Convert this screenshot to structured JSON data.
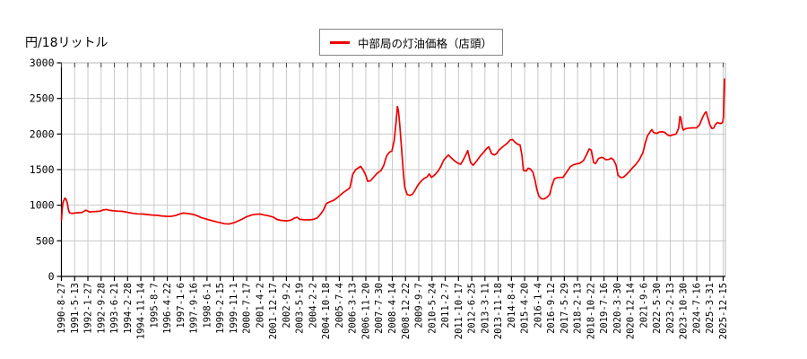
{
  "chart_data": {
    "type": "line",
    "y_axis_title": "円/18リットル",
    "legend": {
      "label": "中部局の灯油価格（店頭）",
      "position": "top-center"
    },
    "ylim": [
      0,
      3000
    ],
    "y_ticks": [
      0,
      500,
      1000,
      1500,
      2000,
      2500,
      3000
    ],
    "grid": true,
    "colors": {
      "line": "#ee0000",
      "grid": "#c9c9c9",
      "axis": "#000000",
      "frame_light": "#b5b5b5",
      "legend_border": "#848484"
    },
    "x_tick_labels": [
      "1990-8-27",
      "1991-5-13",
      "1992-1-27",
      "1992-9-28",
      "1993-6-21",
      "1994-2-28",
      "1994-11-14",
      "1995-8-7",
      "1996-4-22",
      "1997-1-6",
      "1997-9-16",
      "1998-6-1",
      "1999-2-15",
      "1999-11-1",
      "2000-7-17",
      "2001-4-2",
      "2001-12-17",
      "2002-9-2",
      "2003-5-19",
      "2004-2-2",
      "2004-10-18",
      "2005-7-4",
      "2006-3-13",
      "2006-11-20",
      "2007-7-30",
      "2008-4-14",
      "2008-12-22",
      "2009-9-7",
      "2010-5-24",
      "2011-2-7",
      "2011-10-17",
      "2012-6-25",
      "2013-3-11",
      "2013-11-18",
      "2014-8-4",
      "2015-4-20",
      "2016-1-4",
      "2016-9-12",
      "2017-5-29",
      "2018-2-13",
      "2018-10-22",
      "2019-7-16",
      "2020-3-30",
      "2020-12-14",
      "2021-9-6",
      "2022-5-30",
      "2023-2-13",
      "2023-10-30",
      "2024-7-16",
      "2025-3-31",
      "2025-12-15"
    ],
    "x_axis_time_range_years": [
      1990.655,
      2025.956
    ],
    "series": [
      {
        "name": "中部局の灯油価格（店頭）",
        "color": "#ee0000",
        "points_format": [
          "year_decimal",
          "yen_per_18L"
        ],
        "points": [
          [
            1990.66,
            795
          ],
          [
            1990.7,
            950
          ],
          [
            1990.74,
            1040
          ],
          [
            1990.8,
            1075
          ],
          [
            1990.84,
            1100
          ],
          [
            1990.9,
            1085
          ],
          [
            1990.97,
            1030
          ],
          [
            1991.02,
            950
          ],
          [
            1991.08,
            895
          ],
          [
            1991.2,
            885
          ],
          [
            1991.36,
            890
          ],
          [
            1991.55,
            895
          ],
          [
            1991.75,
            898
          ],
          [
            1991.95,
            930
          ],
          [
            1992.05,
            920
          ],
          [
            1992.15,
            905
          ],
          [
            1992.3,
            910
          ],
          [
            1992.5,
            913
          ],
          [
            1992.7,
            916
          ],
          [
            1992.9,
            935
          ],
          [
            1993.05,
            940
          ],
          [
            1993.25,
            928
          ],
          [
            1993.45,
            922
          ],
          [
            1993.65,
            918
          ],
          [
            1993.85,
            915
          ],
          [
            1994.05,
            908
          ],
          [
            1994.25,
            896
          ],
          [
            1994.5,
            885
          ],
          [
            1994.75,
            878
          ],
          [
            1995.0,
            876
          ],
          [
            1995.25,
            868
          ],
          [
            1995.5,
            862
          ],
          [
            1995.75,
            858
          ],
          [
            1996.0,
            850
          ],
          [
            1996.25,
            845
          ],
          [
            1996.5,
            843
          ],
          [
            1996.75,
            856
          ],
          [
            1997.0,
            880
          ],
          [
            1997.15,
            890
          ],
          [
            1997.35,
            885
          ],
          [
            1997.55,
            877
          ],
          [
            1997.71,
            870
          ],
          [
            1997.9,
            852
          ],
          [
            1998.1,
            828
          ],
          [
            1998.42,
            803
          ],
          [
            1998.7,
            783
          ],
          [
            1998.95,
            765
          ],
          [
            1999.12,
            755
          ],
          [
            1999.35,
            740
          ],
          [
            1999.6,
            736
          ],
          [
            1999.84,
            753
          ],
          [
            2000.05,
            775
          ],
          [
            2000.3,
            805
          ],
          [
            2000.54,
            840
          ],
          [
            2000.8,
            862
          ],
          [
            2001.0,
            872
          ],
          [
            2001.25,
            876
          ],
          [
            2001.45,
            865
          ],
          [
            2001.7,
            852
          ],
          [
            2001.96,
            833
          ],
          [
            2002.15,
            800
          ],
          [
            2002.35,
            788
          ],
          [
            2002.67,
            780
          ],
          [
            2002.9,
            790
          ],
          [
            2003.1,
            820
          ],
          [
            2003.22,
            832
          ],
          [
            2003.38,
            802
          ],
          [
            2003.6,
            796
          ],
          [
            2003.85,
            794
          ],
          [
            2004.08,
            800
          ],
          [
            2004.3,
            822
          ],
          [
            2004.5,
            880
          ],
          [
            2004.65,
            940
          ],
          [
            2004.79,
            1025
          ],
          [
            2004.95,
            1045
          ],
          [
            2005.15,
            1065
          ],
          [
            2005.35,
            1100
          ],
          [
            2005.5,
            1135
          ],
          [
            2005.7,
            1180
          ],
          [
            2005.9,
            1215
          ],
          [
            2006.05,
            1245
          ],
          [
            2006.19,
            1430
          ],
          [
            2006.35,
            1500
          ],
          [
            2006.5,
            1525
          ],
          [
            2006.62,
            1545
          ],
          [
            2006.75,
            1495
          ],
          [
            2006.89,
            1420
          ],
          [
            2007.0,
            1335
          ],
          [
            2007.15,
            1345
          ],
          [
            2007.3,
            1390
          ],
          [
            2007.45,
            1435
          ],
          [
            2007.57,
            1465
          ],
          [
            2007.7,
            1485
          ],
          [
            2007.85,
            1560
          ],
          [
            2008.0,
            1690
          ],
          [
            2008.15,
            1745
          ],
          [
            2008.28,
            1760
          ],
          [
            2008.4,
            1900
          ],
          [
            2008.5,
            2150
          ],
          [
            2008.58,
            2388
          ],
          [
            2008.63,
            2330
          ],
          [
            2008.7,
            2150
          ],
          [
            2008.8,
            1800
          ],
          [
            2008.9,
            1450
          ],
          [
            2008.97,
            1255
          ],
          [
            2009.1,
            1150
          ],
          [
            2009.25,
            1138
          ],
          [
            2009.4,
            1160
          ],
          [
            2009.55,
            1225
          ],
          [
            2009.68,
            1285
          ],
          [
            2009.85,
            1340
          ],
          [
            2010.0,
            1375
          ],
          [
            2010.15,
            1395
          ],
          [
            2010.28,
            1440
          ],
          [
            2010.39,
            1390
          ],
          [
            2010.55,
            1420
          ],
          [
            2010.75,
            1480
          ],
          [
            2010.9,
            1545
          ],
          [
            2011.05,
            1635
          ],
          [
            2011.15,
            1665
          ],
          [
            2011.3,
            1705
          ],
          [
            2011.45,
            1665
          ],
          [
            2011.6,
            1630
          ],
          [
            2011.79,
            1592
          ],
          [
            2011.95,
            1575
          ],
          [
            2012.1,
            1640
          ],
          [
            2012.25,
            1720
          ],
          [
            2012.33,
            1768
          ],
          [
            2012.48,
            1600
          ],
          [
            2012.62,
            1562
          ],
          [
            2012.8,
            1620
          ],
          [
            2013.0,
            1690
          ],
          [
            2013.19,
            1748
          ],
          [
            2013.35,
            1800
          ],
          [
            2013.45,
            1822
          ],
          [
            2013.6,
            1725
          ],
          [
            2013.75,
            1705
          ],
          [
            2013.88,
            1727
          ],
          [
            2014.0,
            1775
          ],
          [
            2014.15,
            1810
          ],
          [
            2014.3,
            1842
          ],
          [
            2014.45,
            1875
          ],
          [
            2014.59,
            1917
          ],
          [
            2014.72,
            1924
          ],
          [
            2014.85,
            1885
          ],
          [
            2015.0,
            1855
          ],
          [
            2015.12,
            1845
          ],
          [
            2015.22,
            1700
          ],
          [
            2015.3,
            1490
          ],
          [
            2015.45,
            1480
          ],
          [
            2015.55,
            1520
          ],
          [
            2015.65,
            1512
          ],
          [
            2015.8,
            1470
          ],
          [
            2015.92,
            1350
          ],
          [
            2016.01,
            1230
          ],
          [
            2016.12,
            1130
          ],
          [
            2016.25,
            1092
          ],
          [
            2016.4,
            1088
          ],
          [
            2016.55,
            1110
          ],
          [
            2016.7,
            1150
          ],
          [
            2016.82,
            1270
          ],
          [
            2016.95,
            1370
          ],
          [
            2017.1,
            1388
          ],
          [
            2017.25,
            1390
          ],
          [
            2017.41,
            1390
          ],
          [
            2017.6,
            1462
          ],
          [
            2017.8,
            1540
          ],
          [
            2017.95,
            1565
          ],
          [
            2018.12,
            1580
          ],
          [
            2018.3,
            1588
          ],
          [
            2018.5,
            1625
          ],
          [
            2018.65,
            1700
          ],
          [
            2018.81,
            1790
          ],
          [
            2018.92,
            1775
          ],
          [
            2019.05,
            1600
          ],
          [
            2019.15,
            1585
          ],
          [
            2019.3,
            1655
          ],
          [
            2019.45,
            1672
          ],
          [
            2019.54,
            1668
          ],
          [
            2019.7,
            1640
          ],
          [
            2019.85,
            1642
          ],
          [
            2019.98,
            1663
          ],
          [
            2020.1,
            1640
          ],
          [
            2020.24,
            1565
          ],
          [
            2020.35,
            1420
          ],
          [
            2020.5,
            1388
          ],
          [
            2020.65,
            1395
          ],
          [
            2020.8,
            1432
          ],
          [
            2020.95,
            1472
          ],
          [
            2021.1,
            1520
          ],
          [
            2021.3,
            1575
          ],
          [
            2021.5,
            1645
          ],
          [
            2021.68,
            1742
          ],
          [
            2021.8,
            1870
          ],
          [
            2021.92,
            1975
          ],
          [
            2022.05,
            2025
          ],
          [
            2022.15,
            2062
          ],
          [
            2022.25,
            2020
          ],
          [
            2022.41,
            2008
          ],
          [
            2022.55,
            2028
          ],
          [
            2022.7,
            2032
          ],
          [
            2022.85,
            2022
          ],
          [
            2023.0,
            1985
          ],
          [
            2023.12,
            1975
          ],
          [
            2023.3,
            1990
          ],
          [
            2023.45,
            2000
          ],
          [
            2023.58,
            2080
          ],
          [
            2023.65,
            2248
          ],
          [
            2023.7,
            2230
          ],
          [
            2023.78,
            2090
          ],
          [
            2023.83,
            2055
          ],
          [
            2023.95,
            2075
          ],
          [
            2024.1,
            2082
          ],
          [
            2024.3,
            2086
          ],
          [
            2024.54,
            2088
          ],
          [
            2024.7,
            2130
          ],
          [
            2024.85,
            2230
          ],
          [
            2024.98,
            2295
          ],
          [
            2025.05,
            2312
          ],
          [
            2025.15,
            2220
          ],
          [
            2025.25,
            2128
          ],
          [
            2025.35,
            2080
          ],
          [
            2025.45,
            2082
          ],
          [
            2025.55,
            2135
          ],
          [
            2025.65,
            2162
          ],
          [
            2025.75,
            2150
          ],
          [
            2025.85,
            2148
          ],
          [
            2025.93,
            2165
          ],
          [
            2025.97,
            2240
          ],
          [
            2026.0,
            2520
          ],
          [
            2026.03,
            2772
          ]
        ]
      }
    ]
  }
}
